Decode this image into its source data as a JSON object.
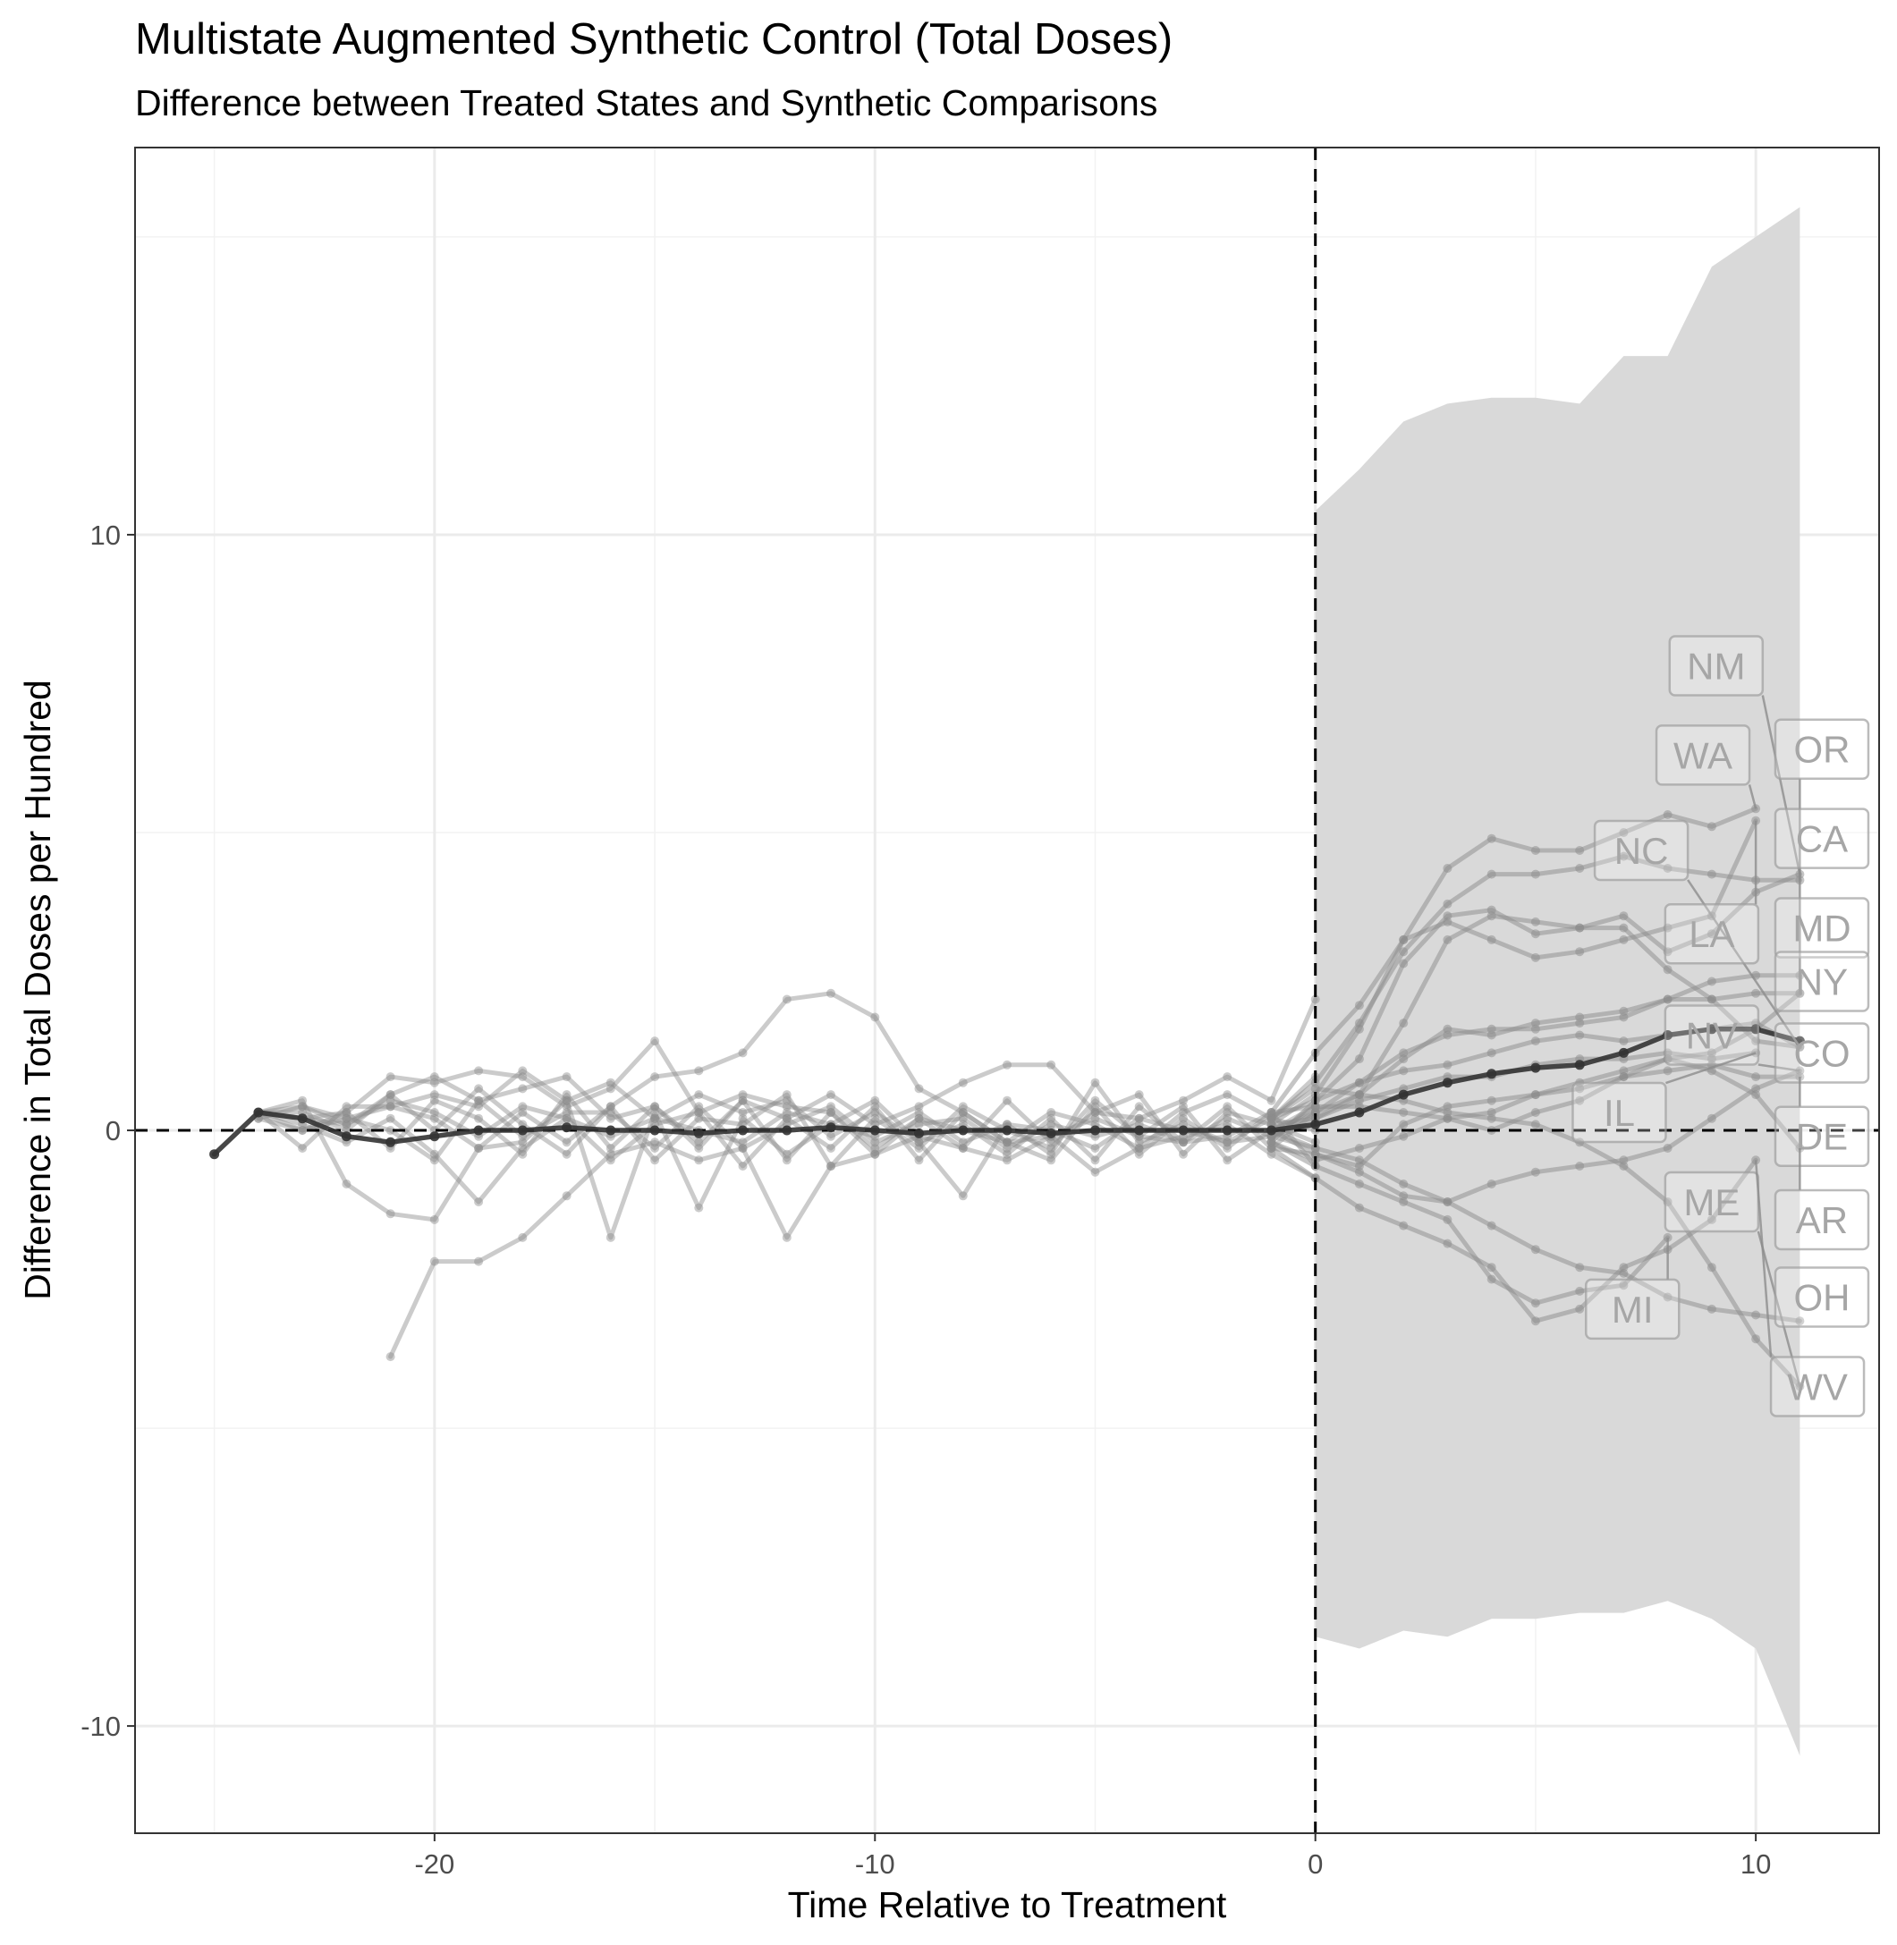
{
  "chart_data": {
    "type": "line",
    "title": "Multistate Augmented Synthetic Control (Total Doses)",
    "subtitle": "Difference between Treated States and Synthetic Comparisons",
    "xlabel": "Time Relative to Treatment",
    "ylabel": "Difference in Total Doses per Hundred",
    "xlim": [
      -26.8,
      12.8
    ],
    "ylim": [
      -11.8,
      16.5
    ],
    "x_ticks": [
      -20,
      -10,
      0,
      10
    ],
    "y_ticks": [
      -10,
      0,
      10
    ],
    "x_tick_labels": [
      "-20",
      "-10",
      "0",
      "10"
    ],
    "y_tick_labels": [
      "-10",
      "0",
      "10"
    ],
    "grid": true,
    "reference_lines": {
      "horizontal": 0,
      "vertical": 0,
      "style": "dashed"
    },
    "colors": {
      "state_line": "#8c8c8c",
      "average_line": "#333333",
      "ribbon": "#d9d9d9",
      "label_border": "#9e9e9e"
    },
    "confidence_band": {
      "x": [
        0,
        1,
        2,
        3,
        4,
        5,
        6,
        7,
        8,
        9,
        10,
        11
      ],
      "lower": [
        -8.5,
        -8.7,
        -8.4,
        -8.5,
        -8.2,
        -8.2,
        -8.1,
        -8.1,
        -7.9,
        -8.2,
        -8.7,
        -10.5
      ],
      "upper": [
        10.4,
        11.1,
        11.9,
        12.2,
        12.3,
        12.3,
        12.2,
        13.0,
        13.0,
        14.5,
        15.0,
        15.5
      ]
    },
    "average": {
      "name": "Average",
      "x": [
        -25,
        -24,
        -23,
        -22,
        -21,
        -20,
        -19,
        -18,
        -17,
        -16,
        -15,
        -14,
        -13,
        -12,
        -11,
        -10,
        -9,
        -8,
        -7,
        -6,
        -5,
        -4,
        -3,
        -2,
        -1,
        0,
        1,
        2,
        3,
        4,
        5,
        6,
        7,
        8,
        9,
        10,
        11
      ],
      "y": [
        -0.4,
        0.3,
        0.2,
        -0.1,
        -0.2,
        -0.1,
        0.0,
        0.0,
        0.05,
        0.0,
        0.0,
        -0.05,
        0.0,
        0.0,
        0.05,
        0.0,
        -0.05,
        0.0,
        0.0,
        -0.05,
        0.0,
        0.0,
        0.0,
        0.0,
        0.0,
        0.1,
        0.3,
        0.6,
        0.8,
        0.95,
        1.05,
        1.1,
        1.3,
        1.6,
        1.7,
        1.7,
        1.5
      ]
    },
    "series": [
      {
        "name": "NM",
        "x": [
          -1,
          0,
          1,
          2,
          3,
          4,
          5,
          6,
          7,
          8,
          9,
          10,
          11
        ],
        "y": [
          -0.1,
          0.2,
          0.6,
          1.8,
          3.2,
          3.6,
          3.5,
          3.4,
          3.6,
          3.0,
          3.3,
          4.0,
          4.3
        ]
      },
      {
        "name": "WA",
        "x": [
          -1,
          0,
          1,
          2,
          3,
          4,
          5,
          6,
          7,
          8,
          9,
          10
        ],
        "y": [
          0.1,
          0.6,
          1.7,
          3.2,
          4.4,
          4.9,
          4.7,
          4.7,
          5.0,
          5.3,
          5.1,
          5.4
        ]
      },
      {
        "name": "OR",
        "x": [
          -1,
          0,
          1,
          2,
          3,
          4,
          5,
          6,
          7,
          8,
          9,
          10,
          11
        ],
        "y": [
          0.2,
          0.8,
          1.8,
          3.0,
          3.8,
          4.3,
          4.3,
          4.4,
          4.6,
          4.4,
          4.3,
          4.2,
          4.2
        ]
      },
      {
        "name": "CA",
        "x": [
          -1,
          0,
          1,
          2,
          3,
          4,
          5,
          6,
          7,
          8,
          9,
          10,
          11
        ],
        "y": [
          0.0,
          0.3,
          0.6,
          1.2,
          1.7,
          1.6,
          1.8,
          1.9,
          2.0,
          2.2,
          2.2,
          2.3,
          2.3
        ]
      },
      {
        "name": "NC",
        "x": [
          -1,
          0,
          1,
          2,
          3,
          4,
          5,
          6,
          7,
          8,
          9,
          10,
          11
        ],
        "y": [
          -0.2,
          0.5,
          1.2,
          2.8,
          3.6,
          3.7,
          3.3,
          3.4,
          3.4,
          2.7,
          2.2,
          1.5,
          1.4
        ]
      },
      {
        "name": "MD",
        "x": [
          -1,
          0,
          1,
          2,
          3,
          4,
          5,
          6,
          7,
          8,
          9,
          10,
          11
        ],
        "y": [
          -0.3,
          -0.4,
          -0.6,
          0.1,
          0.4,
          0.5,
          0.6,
          0.8,
          1.0,
          1.2,
          1.3,
          1.7,
          2.3
        ]
      },
      {
        "name": "LA",
        "x": [
          -1,
          0,
          1,
          2,
          3,
          4,
          5,
          6,
          7,
          8,
          9,
          10
        ],
        "y": [
          0.3,
          1.3,
          2.1,
          3.2,
          3.5,
          3.2,
          2.9,
          3.0,
          3.2,
          3.4,
          3.6,
          5.2
        ]
      },
      {
        "name": "NY",
        "x": [
          -1,
          0,
          1,
          2,
          3,
          4,
          5,
          6,
          7,
          8,
          9,
          10,
          11
        ],
        "y": [
          -0.1,
          0.3,
          0.8,
          1.3,
          1.6,
          1.7,
          1.7,
          1.8,
          1.9,
          2.2,
          2.5,
          2.6,
          2.6
        ]
      },
      {
        "name": "NV",
        "x": [
          -1,
          0,
          1,
          2,
          3,
          4,
          5,
          6,
          7,
          8,
          9,
          10,
          11
        ],
        "y": [
          0.0,
          -0.4,
          -0.7,
          -1.1,
          -1.2,
          -0.9,
          -0.7,
          -0.6,
          -0.5,
          -0.3,
          0.2,
          0.7,
          1.0
        ]
      },
      {
        "name": "CO",
        "x": [
          -1,
          0,
          1,
          2,
          3,
          4,
          5,
          6,
          7,
          8,
          9,
          10,
          11
        ],
        "y": [
          0.2,
          0.5,
          0.8,
          1.0,
          1.1,
          1.3,
          1.5,
          1.6,
          1.5,
          1.6,
          1.7,
          1.8,
          1.4
        ]
      },
      {
        "name": "IL",
        "x": [
          -1,
          0,
          1,
          2,
          3,
          4,
          5,
          6,
          7,
          8,
          9,
          10
        ],
        "y": [
          0.1,
          0.2,
          0.5,
          0.7,
          0.9,
          0.9,
          1.1,
          1.2,
          1.2,
          1.3,
          1.2,
          1.3
        ]
      },
      {
        "name": "DE",
        "x": [
          -1,
          0,
          1,
          2,
          3,
          4,
          5,
          6,
          7,
          8,
          9,
          10,
          11
        ],
        "y": [
          -0.2,
          -0.5,
          -0.3,
          -0.1,
          0.2,
          0.3,
          0.6,
          0.7,
          0.9,
          1.0,
          1.1,
          0.9,
          0.9
        ]
      },
      {
        "name": "ME",
        "x": [
          -1,
          0,
          1,
          2,
          3,
          4,
          5,
          6,
          7,
          8,
          9,
          10,
          11
        ],
        "y": [
          0.2,
          0.7,
          0.6,
          0.5,
          0.3,
          0.2,
          0.1,
          -0.2,
          -0.6,
          -1.2,
          -2.3,
          -3.5,
          -4.3
        ]
      },
      {
        "name": "AR",
        "x": [
          -1,
          0,
          1,
          2,
          3,
          4,
          5,
          6,
          7,
          8,
          9,
          10,
          11
        ],
        "y": [
          -0.1,
          0.4,
          0.4,
          0.3,
          0.2,
          0.0,
          0.3,
          0.5,
          0.9,
          1.2,
          1.0,
          0.6,
          -0.3
        ]
      },
      {
        "name": "MI",
        "x": [
          -1,
          0,
          1,
          2,
          3,
          4,
          5,
          6,
          7,
          8
        ],
        "y": [
          -0.2,
          -0.6,
          -0.9,
          -1.2,
          -1.5,
          -2.5,
          -2.9,
          -2.7,
          -2.6,
          -1.8
        ]
      },
      {
        "name": "OH",
        "x": [
          -1,
          0,
          1,
          2,
          3,
          4,
          5,
          6,
          7,
          8,
          9,
          10,
          11
        ],
        "y": [
          0.0,
          -0.3,
          -0.5,
          -0.9,
          -1.2,
          -1.6,
          -2.0,
          -2.3,
          -2.4,
          -2.8,
          -3.0,
          -3.1,
          -3.2
        ]
      },
      {
        "name": "WV",
        "x": [
          -1,
          0,
          1,
          2,
          3,
          4,
          5,
          6,
          7,
          8,
          9,
          10
        ],
        "y": [
          -0.3,
          -0.8,
          -1.3,
          -1.6,
          -1.9,
          -2.3,
          -3.2,
          -3.0,
          -2.3,
          -2.0,
          -1.5,
          -0.5
        ]
      }
    ],
    "pretreatment_traces": [
      {
        "x": [
          -24,
          -23,
          -22,
          -21,
          -20,
          -19,
          -18,
          -17,
          -16,
          -15,
          -14,
          -13,
          -12,
          -11,
          -10,
          -9,
          -8,
          -7,
          -6,
          -5,
          -4,
          -3,
          -2,
          -1,
          0
        ],
        "y": [
          0.3,
          0.4,
          0.1,
          0.6,
          0.9,
          0.5,
          0.7,
          0.9,
          0.2,
          0.4,
          -0.3,
          0.5,
          0.2,
          0.6,
          0.1,
          0.4,
          0.8,
          1.1,
          1.1,
          0.3,
          0.2,
          0.5,
          0.9,
          0.5,
          2.2
        ]
      },
      {
        "x": [
          -24,
          -23,
          -22,
          -21,
          -20,
          -19,
          -18,
          -17,
          -16,
          -15,
          -14,
          -13,
          -12,
          -11,
          -10,
          -9,
          -8,
          -7,
          -6,
          -5,
          -4,
          -3,
          -2,
          -1,
          0
        ],
        "y": [
          0.3,
          0.5,
          -0.9,
          -1.4,
          -1.5,
          -0.3,
          0.3,
          -0.2,
          0.4,
          0.9,
          1.0,
          1.3,
          2.2,
          2.3,
          1.9,
          0.7,
          0.3,
          -0.2,
          -0.1,
          0.2,
          -0.1,
          -0.2,
          -0.1,
          0.3,
          0.4
        ]
      },
      {
        "x": [
          -21,
          -20,
          -19,
          -18,
          -17,
          -16,
          -15,
          -14,
          -13,
          -12,
          -11,
          -10,
          -9,
          -8,
          -7,
          -6,
          -5,
          -4,
          -3,
          -2,
          -1,
          0
        ],
        "y": [
          -3.8,
          -2.2,
          -2.2,
          -1.8,
          -1.1,
          -0.4,
          -0.2,
          -0.5,
          -0.3,
          -1.8,
          -0.6,
          -0.4,
          -0.1,
          -0.3,
          -0.5,
          -0.1,
          -0.7,
          -0.3,
          -0.1,
          0.1,
          -0.4,
          -0.8
        ]
      },
      {
        "x": [
          -24,
          -23,
          -22,
          -21,
          -20,
          -19,
          -18,
          -17,
          -16,
          -15,
          -14,
          -13,
          -12,
          -11,
          -10,
          -9,
          -8,
          -7,
          -6,
          -5,
          -4,
          -3,
          -2,
          -1,
          0
        ],
        "y": [
          0.3,
          -0.3,
          0.4,
          0.4,
          0.2,
          -0.3,
          -0.2,
          0.5,
          -1.8,
          0.3,
          -1.3,
          0.2,
          -0.4,
          0.1,
          0.5,
          -0.2,
          -1.1,
          0.1,
          -0.4,
          0.8,
          -0.2,
          0.1,
          -0.2,
          -0.1,
          -0.3
        ]
      },
      {
        "x": [
          -24,
          -23,
          -22,
          -21,
          -20,
          -19,
          -18,
          -17,
          -16,
          -15,
          -14,
          -13,
          -12,
          -11,
          -10,
          -9,
          -8,
          -7,
          -6,
          -5,
          -4,
          -3,
          -2,
          -1,
          0
        ],
        "y": [
          0.3,
          0.2,
          0.3,
          0.9,
          0.8,
          1.0,
          0.9,
          0.4,
          0.7,
          1.5,
          0.3,
          0.6,
          0.4,
          0.3,
          -0.3,
          0.2,
          0.0,
          -0.2,
          0.3,
          0.1,
          -0.3,
          0.3,
          0.6,
          0.2,
          0.9
        ]
      },
      {
        "x": [
          -24,
          -23,
          -22,
          -21,
          -20,
          -19,
          -18,
          -17,
          -16,
          -15,
          -14,
          -13,
          -12,
          -11,
          -10,
          -9,
          -8,
          -7,
          -6,
          -5,
          -4,
          -3,
          -2,
          -1,
          0
        ],
        "y": [
          0.2,
          0.4,
          0.2,
          0.4,
          0.6,
          0.4,
          1.0,
          0.5,
          0.8,
          0.2,
          0.6,
          0.3,
          0.5,
          -0.1,
          0.3,
          -0.2,
          0.1,
          -0.4,
          0.2,
          -0.5,
          0.4,
          -0.2,
          0.2,
          -0.1,
          0.1
        ]
      },
      {
        "x": [
          -24,
          -23,
          -22,
          -21,
          -20,
          -19,
          -18,
          -17,
          -16,
          -15,
          -14,
          -13,
          -12,
          -11,
          -10,
          -9,
          -8,
          -7,
          -6,
          -5,
          -4,
          -3,
          -2,
          -1,
          0
        ],
        "y": [
          0.3,
          0.1,
          -0.2,
          0.2,
          -0.4,
          -1.2,
          -0.3,
          0.2,
          -0.5,
          0.1,
          0.3,
          -0.6,
          0.2,
          -0.3,
          0.4,
          -0.5,
          0.3,
          -0.2,
          -0.5,
          0.4,
          -0.4,
          0.2,
          -0.3,
          0.3,
          -0.6
        ]
      },
      {
        "x": [
          -24,
          -23,
          -22,
          -21,
          -20,
          -19,
          -18,
          -17,
          -16,
          -15,
          -14,
          -13,
          -12,
          -11,
          -10,
          -9,
          -8,
          -7,
          -6,
          -5,
          -4,
          -3,
          -2,
          -1,
          0
        ],
        "y": [
          0.2,
          0.0,
          0.3,
          -0.3,
          0.5,
          0.2,
          -0.4,
          0.6,
          -0.3,
          0.4,
          -0.2,
          0.5,
          -0.5,
          0.3,
          -0.4,
          0.2,
          -0.3,
          0.5,
          -0.2,
          0.3,
          0.6,
          -0.4,
          0.3,
          0.1,
          -0.2
        ]
      },
      {
        "x": [
          -24,
          -23,
          -22,
          -21,
          -20,
          -19,
          -18,
          -17,
          -16,
          -15,
          -14,
          -13,
          -12,
          -11,
          -10,
          -9,
          -8,
          -7,
          -6,
          -5,
          -4,
          -3,
          -2,
          -1,
          0
        ],
        "y": [
          0.3,
          0.3,
          0.0,
          0.6,
          0.0,
          0.7,
          0.1,
          -0.4,
          0.4,
          -0.5,
          0.2,
          0.1,
          0.6,
          -0.6,
          0.2,
          -0.3,
          0.4,
          0.0,
          -0.3,
          0.5,
          -0.1,
          0.4,
          -0.5,
          0.0,
          0.4
        ]
      },
      {
        "x": [
          -24,
          -23,
          -22,
          -21,
          -20,
          -19,
          -18,
          -17,
          -16,
          -15,
          -14,
          -13,
          -12,
          -11,
          -10,
          -9,
          -8,
          -7,
          -6,
          -5,
          -4,
          -3,
          -2,
          -1,
          0
        ],
        "y": [
          0.3,
          0.2,
          0.1,
          0.5,
          0.3,
          -0.1,
          0.4,
          0.2,
          -0.1,
          0.2,
          0.0,
          -0.2,
          0.3,
          0.1,
          -0.1,
          0.3,
          -0.2,
          0.1,
          0.0,
          -0.3,
          0.2,
          0.0,
          -0.2,
          0.2,
          0.0
        ]
      },
      {
        "x": [
          -24,
          -23,
          -22,
          -21,
          -20,
          -19,
          -18,
          -17,
          -16,
          -15,
          -14,
          -13,
          -12,
          -11,
          -10,
          -9,
          -8,
          -7,
          -6,
          -5,
          -4,
          -3,
          -2,
          -1,
          0
        ],
        "y": [
          0.3,
          0.0,
          0.2,
          0.0,
          -0.5,
          0.5,
          -0.1,
          0.3,
          0.3,
          -0.3,
          0.4,
          -0.3,
          0.1,
          0.4,
          -0.2,
          0.1,
          0.2,
          -0.3,
          0.1,
          -0.1,
          0.1,
          -0.2,
          0.4,
          -0.3,
          0.3
        ]
      }
    ],
    "state_labels": [
      "NM",
      "WA",
      "OR",
      "CA",
      "NC",
      "MD",
      "LA",
      "NY",
      "NV",
      "CO",
      "IL",
      "DE",
      "ME",
      "AR",
      "MI",
      "OH",
      "WV"
    ]
  }
}
